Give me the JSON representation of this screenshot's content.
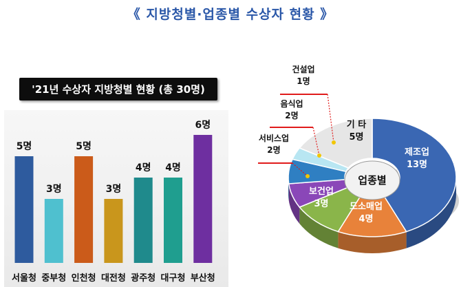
{
  "page_title": "《 지방청별·업종별 수상자 현황 》",
  "chart_data": [
    {
      "type": "bar",
      "title": "'21년 수상자 지방청별 현황 (총 30명)",
      "categories": [
        "서울청",
        "중부청",
        "인천청",
        "대전청",
        "광주청",
        "대구청",
        "부산청"
      ],
      "values": [
        5,
        3,
        5,
        3,
        4,
        4,
        6
      ],
      "value_labels": [
        "5명",
        "3명",
        "5명",
        "3명",
        "4명",
        "4명",
        "6명"
      ],
      "colors": [
        "#2e5b9e",
        "#4fc0cf",
        "#cb5b1a",
        "#c9961c",
        "#1f8a8c",
        "#1f9e8f",
        "#6e2fa0"
      ],
      "ylim": [
        0,
        7
      ],
      "grid": false,
      "legend": "none"
    },
    {
      "type": "pie",
      "variant": "3d-donut",
      "center_label": "업종별",
      "slices": [
        {
          "name": "제조업",
          "value": 13,
          "value_label": "13명",
          "color": "#3a67b3"
        },
        {
          "name": "도소매업",
          "value": 4,
          "value_label": "4명",
          "color": "#e8823a"
        },
        {
          "name": "보건업",
          "value": 3,
          "value_label": "3명",
          "color": "#8ab54a"
        },
        {
          "name": "서비스업",
          "value": 2,
          "value_label": "2명",
          "color": "#8a47b8"
        },
        {
          "name": "음식업",
          "value": 2,
          "value_label": "2명",
          "color": "#2f7fc2"
        },
        {
          "name": "건설업",
          "value": 1,
          "value_label": "1명",
          "color": "#b8e6f2"
        },
        {
          "name": "기 타",
          "value": 5,
          "value_label": "5명",
          "color": "#e6e6e6"
        }
      ]
    }
  ]
}
